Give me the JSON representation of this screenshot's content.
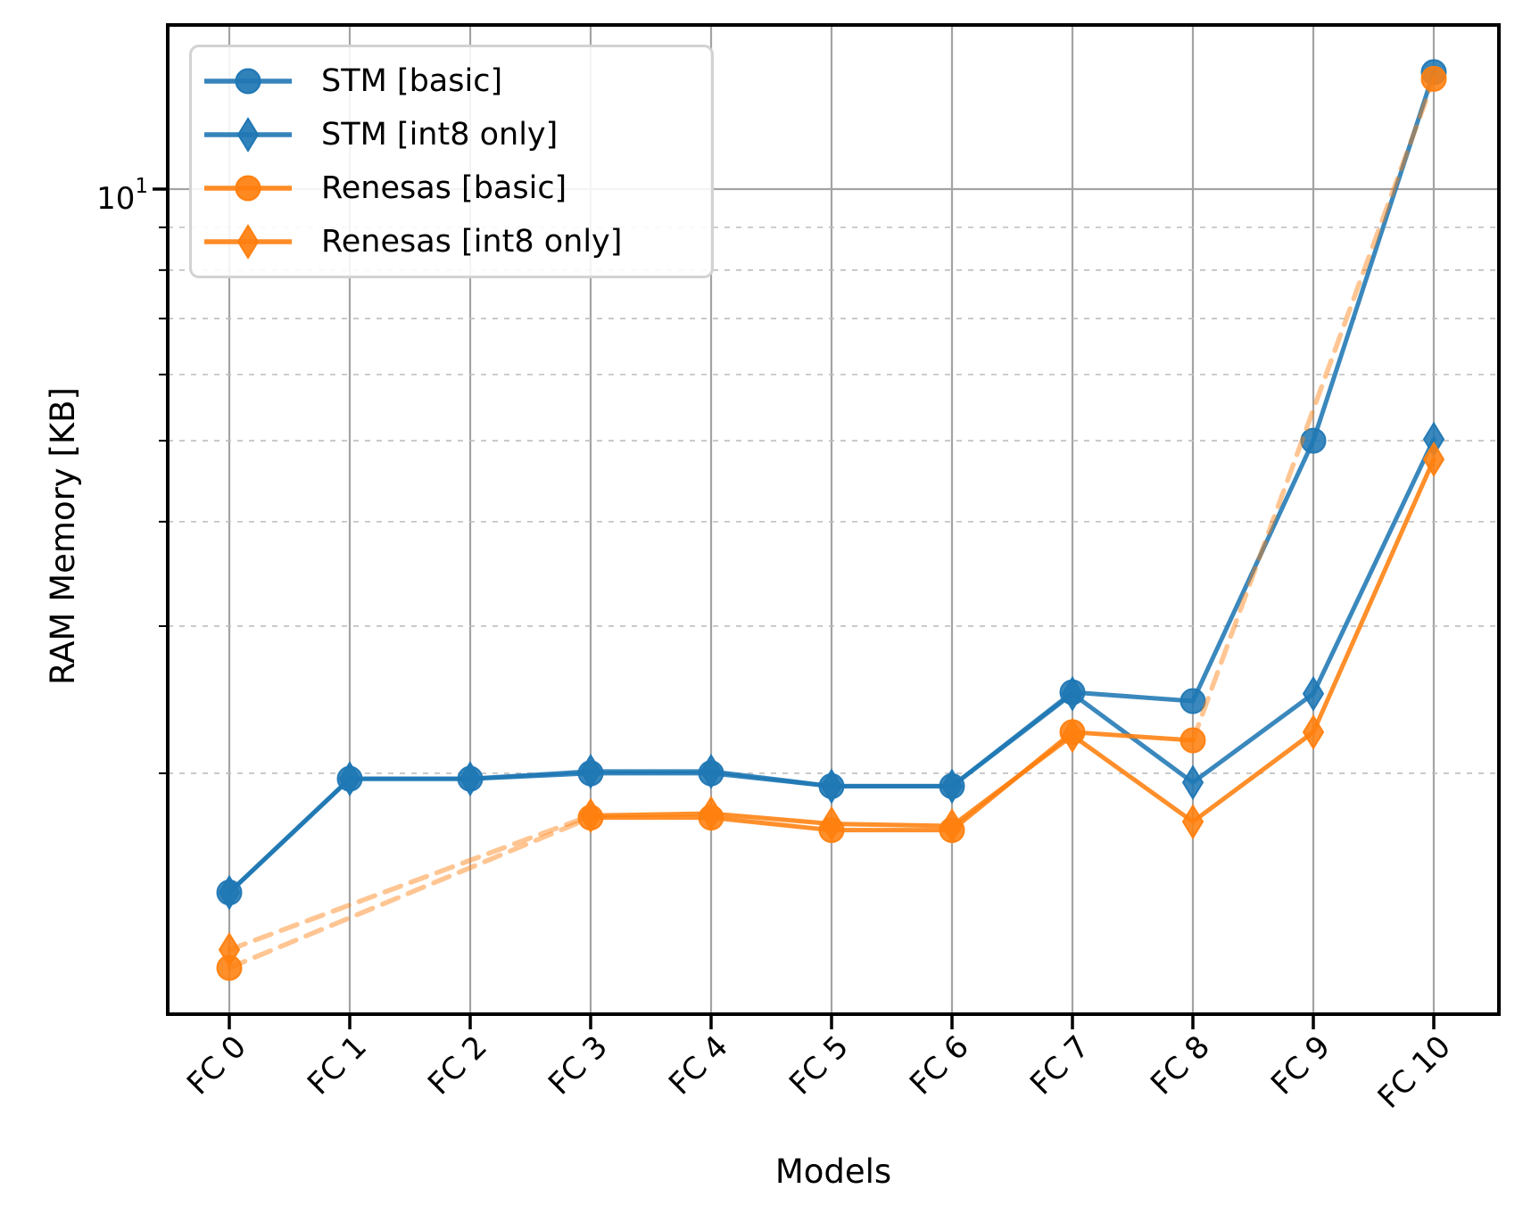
{
  "figure": {
    "background": "#ffffff",
    "y_major_tick": {
      "base": "10",
      "exp": "1"
    }
  },
  "chart_data": {
    "type": "line",
    "title": "",
    "xlabel": "Models",
    "ylabel": "RAM Memory [KB]",
    "yscale": "log",
    "categories": [
      "FC 0",
      "FC 1",
      "FC 2",
      "FC 3",
      "FC 4",
      "FC 5",
      "FC 6",
      "FC 7",
      "FC 8",
      "FC 9",
      "FC 10"
    ],
    "ylim": [
      1.03,
      15.7
    ],
    "y_major_gridlines": [
      10
    ],
    "y_minor_gridlines": [
      2,
      3,
      4,
      5,
      6,
      7,
      8,
      9
    ],
    "grid": {
      "vertical_color": "#a3a3a3",
      "major_color": "#a3a3a3",
      "minor_color": "#bdbdbd"
    },
    "axis_color": "#000000",
    "legend_position": "upper left",
    "dashed_gap_connect": true,
    "series": [
      {
        "name": "STM [basic]",
        "color": "#1f77b4",
        "marker": "circle",
        "values": [
          1.44,
          1.97,
          1.97,
          2.0,
          2.0,
          1.93,
          1.93,
          2.5,
          2.44,
          5.0,
          13.8
        ]
      },
      {
        "name": "STM [int8 only]",
        "color": "#1f77b4",
        "marker": "diamond",
        "values": [
          1.44,
          1.97,
          1.97,
          2.01,
          2.01,
          1.93,
          1.93,
          2.49,
          1.95,
          2.49,
          5.02
        ]
      },
      {
        "name": "Renesas [basic]",
        "color": "#ff7f0e",
        "marker": "circle",
        "values": [
          1.17,
          null,
          null,
          1.77,
          1.77,
          1.71,
          1.71,
          2.24,
          2.19,
          null,
          13.55
        ]
      },
      {
        "name": "Renesas [int8 only]",
        "color": "#ff7f0e",
        "marker": "diamond",
        "values": [
          1.23,
          null,
          null,
          1.78,
          1.79,
          1.74,
          1.73,
          2.22,
          1.75,
          2.24,
          4.75
        ]
      }
    ]
  }
}
